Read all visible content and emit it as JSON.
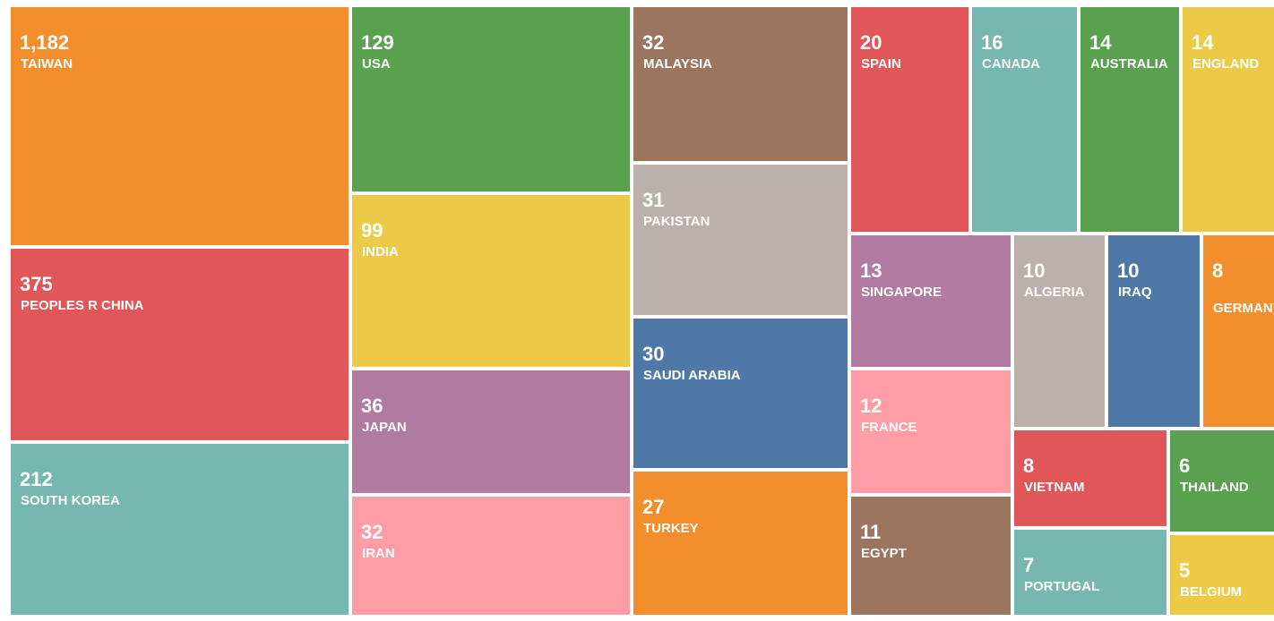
{
  "chart_data": {
    "type": "treemap",
    "title": "",
    "legend": "none",
    "items": [
      {
        "label": "TAIWAN",
        "value_label": "1,182",
        "value": 1182,
        "color": "#f28e2b"
      },
      {
        "label": "PEOPLES R CHINA",
        "value_label": "375",
        "value": 375,
        "color": "#e15759"
      },
      {
        "label": "SOUTH KOREA",
        "value_label": "212",
        "value": 212,
        "color": "#76b7b2"
      },
      {
        "label": "USA",
        "value_label": "129",
        "value": 129,
        "color": "#59a14f"
      },
      {
        "label": "INDIA",
        "value_label": "99",
        "value": 99,
        "color": "#edc948"
      },
      {
        "label": "JAPAN",
        "value_label": "36",
        "value": 36,
        "color": "#b07aa1"
      },
      {
        "label": "IRAN",
        "value_label": "32",
        "value": 32,
        "color": "#ff9da7"
      },
      {
        "label": "MALAYSIA",
        "value_label": "32",
        "value": 32,
        "color": "#9c755f"
      },
      {
        "label": "PAKISTAN",
        "value_label": "31",
        "value": 31,
        "color": "#bab0ac"
      },
      {
        "label": "SAUDI ARABIA",
        "value_label": "30",
        "value": 30,
        "color": "#4e79a7"
      },
      {
        "label": "TURKEY",
        "value_label": "27",
        "value": 27,
        "color": "#f28e2b"
      },
      {
        "label": "SPAIN",
        "value_label": "20",
        "value": 20,
        "color": "#e15759"
      },
      {
        "label": "CANADA",
        "value_label": "16",
        "value": 16,
        "color": "#76b7b2"
      },
      {
        "label": "AUSTRALIA",
        "value_label": "14",
        "value": 14,
        "color": "#59a14f"
      },
      {
        "label": "ENGLAND",
        "value_label": "14",
        "value": 14,
        "color": "#edc948"
      },
      {
        "label": "SINGAPORE",
        "value_label": "13",
        "value": 13,
        "color": "#b07aa1"
      },
      {
        "label": "ALGERIA",
        "value_label": "10",
        "value": 10,
        "color": "#bab0ac"
      },
      {
        "label": "IRAQ",
        "value_label": "10",
        "value": 10,
        "color": "#4e79a7"
      },
      {
        "label": "GERMANY",
        "value_label": "8",
        "value": 8,
        "color": "#f28e2b"
      },
      {
        "label": "FRANCE",
        "value_label": "12",
        "value": 12,
        "color": "#ff9da7"
      },
      {
        "label": "EGYPT",
        "value_label": "11",
        "value": 11,
        "color": "#9c755f"
      },
      {
        "label": "VIETNAM",
        "value_label": "8",
        "value": 8,
        "color": "#e15759"
      },
      {
        "label": "THAILAND",
        "value_label": "6",
        "value": 6,
        "color": "#59a14f"
      },
      {
        "label": "PORTUGAL",
        "value_label": "7",
        "value": 7,
        "color": "#76b7b2"
      },
      {
        "label": "BELGIUM",
        "value_label": "5",
        "value": 5,
        "color": "#edc948"
      }
    ]
  }
}
